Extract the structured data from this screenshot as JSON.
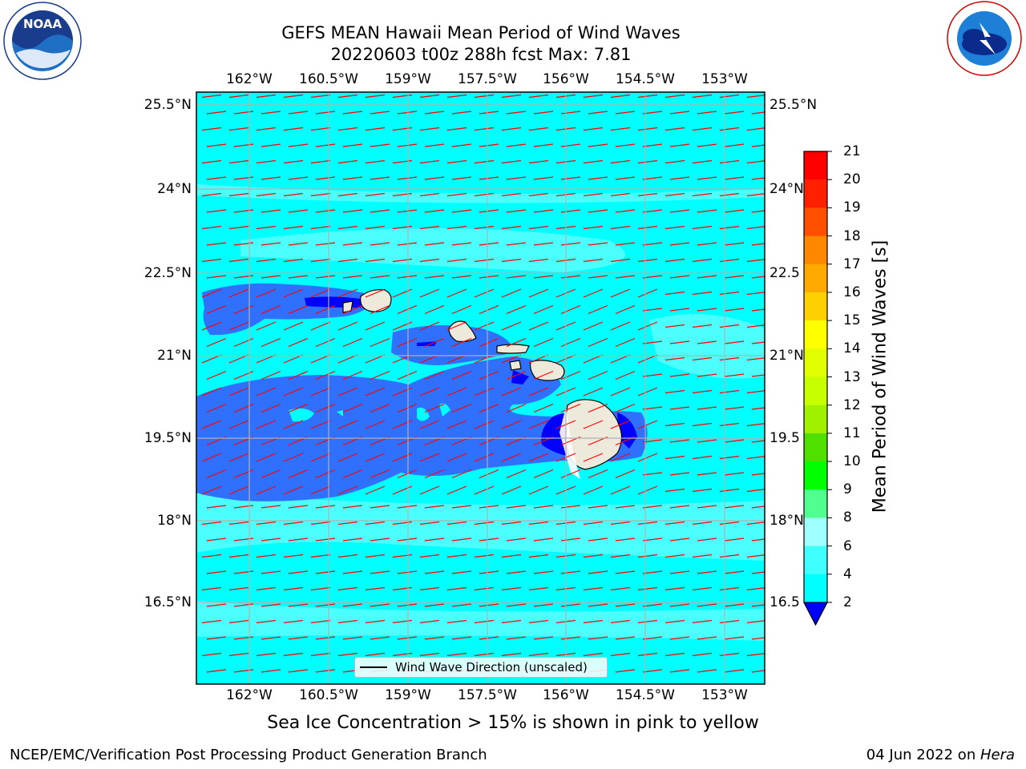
{
  "header": {
    "title_line1": "GEFS MEAN Hawaii Mean Period of Wind Waves",
    "title_line2": "20220603 t00z 288h fcst   Max: 7.81"
  },
  "logos": {
    "noaa": {
      "text": "NOAA",
      "ring_text": "NATIONAL OCEANIC AND ATMOSPHERIC ADMINISTRATION · U.S. DEPARTMENT OF COMMERCE"
    },
    "nws": {
      "ring_text": "NATIONAL WEATHER SERVICE"
    }
  },
  "axes": {
    "lon_labels": [
      "162°W",
      "160.5°W",
      "159°W",
      "157.5°W",
      "156°W",
      "154.5°W",
      "153°W"
    ],
    "lat_labels_left": [
      "25.5°N",
      "24°N",
      "22.5°N",
      "21°N",
      "19.5°N",
      "18°N",
      "16.5°N"
    ],
    "lat_labels_right": [
      "25.5°N",
      "24°N",
      "22.5",
      "21°N",
      "19.5",
      "18°N",
      "16.5"
    ]
  },
  "map_legend": {
    "label": "Wind Wave Direction (unscaled)"
  },
  "colorbar": {
    "label": "Mean Period of Wind Waves [s]",
    "ticks": [
      "2",
      "4",
      "6",
      "8",
      "9",
      "10",
      "11",
      "12",
      "13",
      "14",
      "15",
      "16",
      "17",
      "18",
      "19",
      "20",
      "21"
    ],
    "colors": [
      "#0050ff",
      "#00ffff",
      "#40ffff",
      "#a0ffff",
      "#50ff90",
      "#00ff00",
      "#50e000",
      "#a0f000",
      "#c8ff00",
      "#e0ff00",
      "#ffff00",
      "#ffd000",
      "#ffaa00",
      "#ff8800",
      "#ff5000",
      "#ff2000",
      "#ff0000"
    ],
    "extend_color": "#0000ff"
  },
  "palette": {
    "ocean_base": "#00ffff",
    "ocean_light": "#50ffff",
    "ocean_short": "#3070ff",
    "ocean_shortest": "#0000ff",
    "land": "#eeeadb",
    "arrows": "#ff0000",
    "grid": "#b0b0b0"
  },
  "notes": {
    "sea_ice": "Sea Ice Concentration > 15% is shown in pink to yellow"
  },
  "footer": {
    "left": "NCEP/EMC/Verification Post Processing Product Generation Branch",
    "date": "04 Jun 2022 on ",
    "machine": "Hera"
  }
}
